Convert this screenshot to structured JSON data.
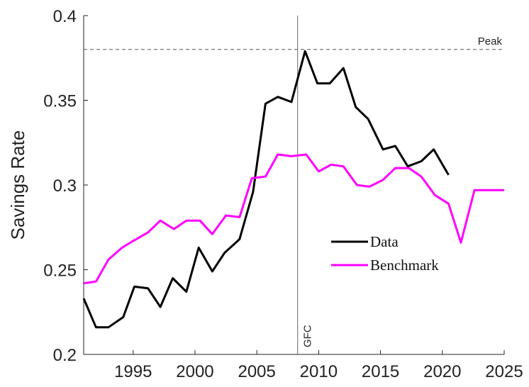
{
  "chart_data": {
    "type": "line",
    "ylabel": "Savings Rate",
    "xlim": [
      1991,
      2025
    ],
    "ylim": [
      0.2,
      0.4
    ],
    "xticks": [
      1995,
      2000,
      2005,
      2010,
      2015,
      2020,
      2025
    ],
    "yticks": [
      0.2,
      0.25,
      0.3,
      0.35,
      0.4
    ],
    "grid": false,
    "legend": "center-right",
    "vline": {
      "x": 2008.3,
      "label": "GFC"
    },
    "hline": {
      "y": 0.38,
      "label": "Peak"
    },
    "series": [
      {
        "name": "Data",
        "color": "#000000",
        "x": [
          1991,
          1992.0,
          1993.0,
          1994.2,
          1995.1,
          1996.2,
          1997.2,
          1998.2,
          1999.3,
          2000.3,
          2001.4,
          2002.4,
          2003.6,
          2004.7,
          2005.7,
          2006.7,
          2007.8,
          2008.9,
          2009.9,
          2010.9,
          2012.0,
          2013.0,
          2014.0,
          2015.2,
          2016.2,
          2017.2,
          2018.3,
          2019.3,
          2020.5
        ],
        "values": [
          0.233,
          0.216,
          0.216,
          0.222,
          0.24,
          0.239,
          0.228,
          0.245,
          0.237,
          0.263,
          0.249,
          0.26,
          0.268,
          0.296,
          0.348,
          0.352,
          0.349,
          0.379,
          0.36,
          0.36,
          0.369,
          0.346,
          0.339,
          0.321,
          0.323,
          0.311,
          0.314,
          0.321,
          0.306
        ]
      },
      {
        "name": "Benchmark",
        "color": "#ff00ff",
        "x": [
          1991,
          1992.0,
          1993.0,
          1994.1,
          1995.0,
          1996.2,
          1997.2,
          1998.3,
          1999.3,
          2000.4,
          2001.4,
          2002.5,
          2003.6,
          2004.6,
          2005.7,
          2006.7,
          2007.8,
          2009.0,
          2010.0,
          2011.0,
          2012.0,
          2013.1,
          2014.1,
          2015.2,
          2016.2,
          2017.3,
          2018.3,
          2019.4,
          2020.5,
          2021.5,
          2022.6,
          2023.7,
          2024.7,
          2025
        ],
        "values": [
          0.242,
          0.243,
          0.256,
          0.263,
          0.267,
          0.272,
          0.279,
          0.274,
          0.279,
          0.279,
          0.271,
          0.282,
          0.281,
          0.304,
          0.305,
          0.318,
          0.317,
          0.318,
          0.308,
          0.312,
          0.311,
          0.3,
          0.299,
          0.303,
          0.31,
          0.31,
          0.305,
          0.294,
          0.289,
          0.266,
          0.297,
          0.297,
          0.297,
          0.297
        ]
      }
    ]
  }
}
